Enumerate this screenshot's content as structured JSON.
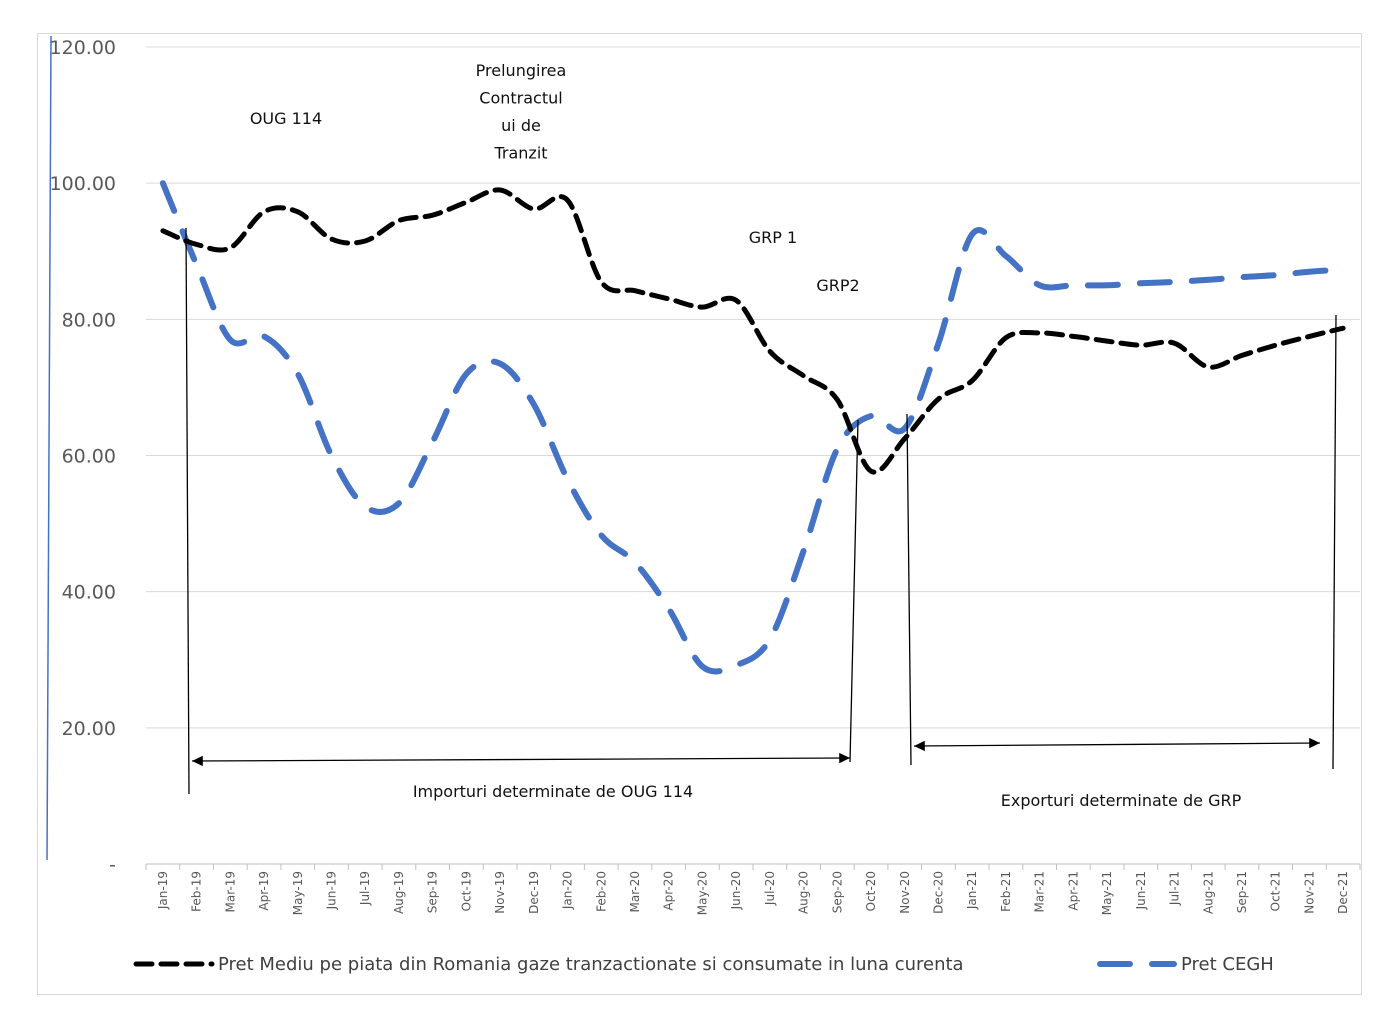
{
  "chart_data": {
    "type": "line",
    "categories": [
      "Jan-19",
      "Feb-19",
      "Mar-19",
      "Apr-19",
      "May-19",
      "Jun-19",
      "Jul-19",
      "Aug-19",
      "Sep-19",
      "Oct-19",
      "Nov-19",
      "Dec-19",
      "Jan-20",
      "Feb-20",
      "Mar-20",
      "Apr-20",
      "May-20",
      "Jun-20",
      "Jul-20",
      "Aug-20",
      "Sep-20",
      "Oct-20",
      "Nov-20",
      "Dec-20",
      "Jan-21",
      "Feb-21",
      "Mar-21",
      "Apr-21",
      "May-21",
      "Jun-21",
      "Jul-21",
      "Aug-21",
      "Sep-21",
      "Oct-21",
      "Nov-21",
      "Dec-21"
    ],
    "series": [
      {
        "name": "Pret Mediu pe piata din Romania gaze tranzactionate si consumate in luna curenta",
        "color": "#000000",
        "values": [
          93.0,
          91.0,
          90.5,
          95.8,
          95.8,
          91.8,
          91.5,
          94.5,
          95.3,
          97.2,
          99.0,
          96.2,
          97.5,
          85.5,
          84.2,
          83.0,
          81.8,
          82.8,
          75.3,
          71.7,
          68.2,
          57.7,
          62.5,
          68.3,
          71.0,
          77.3,
          78.0,
          77.5,
          76.8,
          76.2,
          76.5,
          73.0,
          74.7,
          76.2,
          77.5,
          78.7
        ]
      },
      {
        "name": "Pret CEGH",
        "color": "#4472c4",
        "values": [
          100.0,
          88.0,
          77.0,
          77.5,
          72.0,
          60.0,
          52.5,
          53.0,
          62.0,
          72.0,
          73.5,
          67.5,
          56.5,
          48.3,
          44.3,
          37.5,
          29.0,
          29.2,
          33.0,
          46.0,
          61.0,
          65.8,
          64.0,
          76.5,
          92.5,
          89.3,
          85.0,
          85.0,
          85.0,
          85.3,
          85.5,
          85.8,
          86.2,
          86.5,
          87.0,
          87.3
        ]
      }
    ],
    "y_ticks": [
      "120.00",
      "100.00",
      "80.00",
      "60.00",
      "40.00",
      "20.00",
      "-"
    ],
    "ylim": [
      0,
      120
    ],
    "grid": true,
    "legend_position": "bottom",
    "annotations": {
      "oug": "OUG 114",
      "prelungirea": [
        "Prelungirea",
        "Contractul",
        "ui de",
        "Tranzit"
      ],
      "grp1": "GRP 1",
      "grp2": "GRP2",
      "importuri": "Importuri determinate de OUG 114",
      "exporturi": "Exporturi determinate de GRP"
    }
  }
}
